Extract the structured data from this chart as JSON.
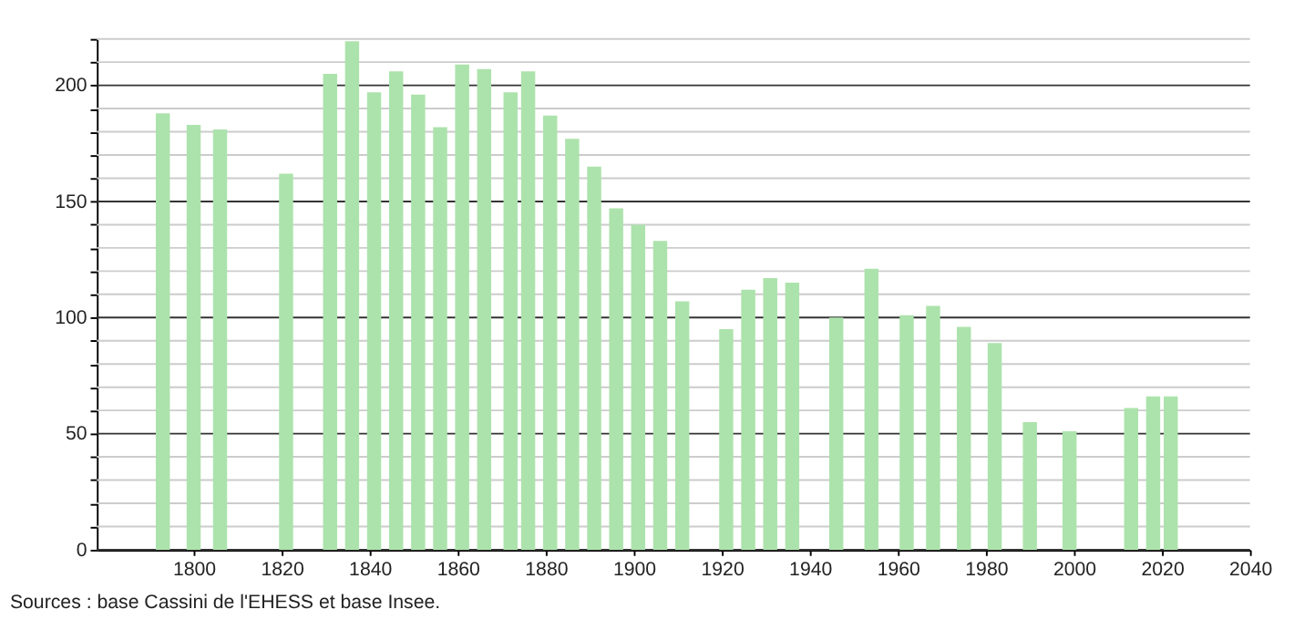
{
  "chart_data": {
    "type": "bar",
    "annotations": [
      "Sources : base Cassini de l'EHESS et base Insee."
    ],
    "x": [
      1793,
      1800,
      1806,
      1821,
      1831,
      1836,
      1841,
      1846,
      1851,
      1856,
      1861,
      1866,
      1872,
      1876,
      1881,
      1886,
      1891,
      1896,
      1901,
      1906,
      1911,
      1921,
      1926,
      1931,
      1936,
      1946,
      1954,
      1962,
      1968,
      1975,
      1982,
      1990,
      1999,
      2013,
      2018,
      2022
    ],
    "values": [
      188,
      183,
      181,
      162,
      205,
      219,
      197,
      206,
      196,
      182,
      209,
      207,
      197,
      206,
      187,
      177,
      165,
      147,
      140,
      133,
      107,
      95,
      112,
      117,
      115,
      100,
      121,
      101,
      105,
      96,
      89,
      55,
      51,
      61,
      66,
      66
    ],
    "color": "#ace3ac",
    "xlim": [
      1778,
      2040
    ],
    "xticks": [
      1800,
      1820,
      1840,
      1860,
      1880,
      1900,
      1920,
      1940,
      1960,
      1980,
      2000,
      2020,
      2040
    ],
    "ylim": [
      0,
      220
    ],
    "yticks": [
      0,
      {
        "value": 10,
        "label": null
      },
      {
        "value": 20,
        "label": null
      },
      {
        "value": 30,
        "label": null
      },
      {
        "value": 40,
        "label": null
      },
      50,
      {
        "value": 60,
        "label": null
      },
      {
        "value": 70,
        "label": null
      },
      {
        "value": 80,
        "label": null
      },
      {
        "value": 90,
        "label": null
      },
      100,
      {
        "value": 110,
        "label": null
      },
      {
        "value": 120,
        "label": null
      },
      {
        "value": 130,
        "label": null
      },
      {
        "value": 140,
        "label": null
      },
      150,
      {
        "value": 160,
        "label": null
      },
      {
        "value": 170,
        "label": null
      },
      {
        "value": 180,
        "label": null
      },
      {
        "value": 190,
        "label": null
      },
      200,
      {
        "value": 210,
        "label": null
      },
      {
        "value": 220,
        "label": null
      }
    ],
    "grid": true
  }
}
